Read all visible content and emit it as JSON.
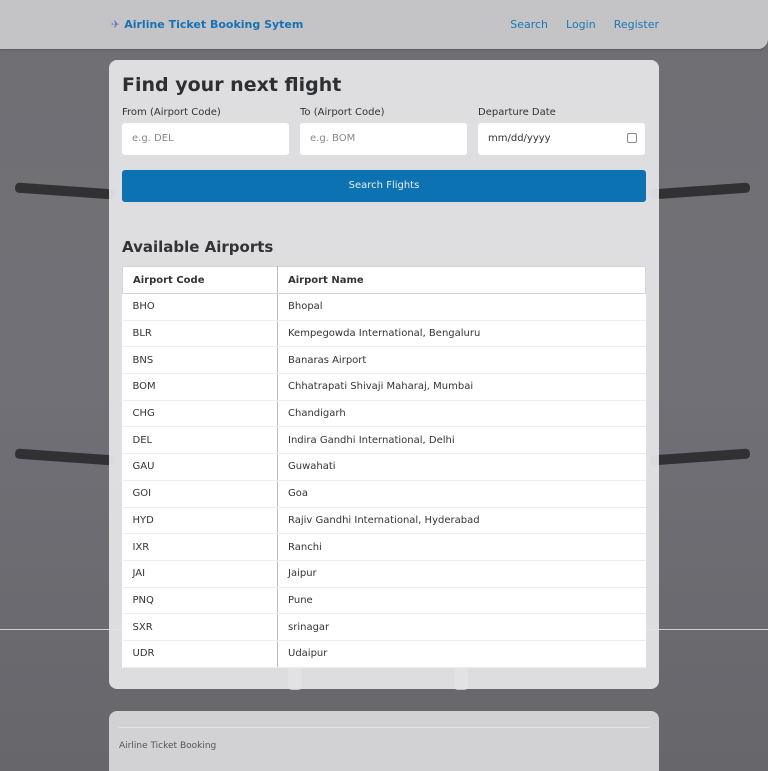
{
  "nav": {
    "brand": "Airline Ticket Booking Sytem",
    "brand_icon": "airplane-icon",
    "links": [
      "Search",
      "Login",
      "Register"
    ]
  },
  "search": {
    "title": "Find your next flight",
    "from_label": "From (Airport Code)",
    "from_placeholder": "e.g. DEL",
    "to_label": "To (Airport Code)",
    "to_placeholder": "e.g. BOM",
    "date_label": "Departure Date",
    "date_placeholder": "mm/dd/yyyy",
    "button": "Search Flights"
  },
  "airports": {
    "title": "Available Airports",
    "headers": [
      "Airport Code",
      "Airport Name"
    ],
    "rows": [
      [
        "BHO",
        "Bhopal"
      ],
      [
        "BLR",
        "Kempegowda International, Bengaluru"
      ],
      [
        "BNS",
        "Banaras Airport"
      ],
      [
        "BOM",
        "Chhatrapati Shivaji Maharaj, Mumbai"
      ],
      [
        "CHG",
        "Chandigarh"
      ],
      [
        "DEL",
        "Indira Gandhi International, Delhi"
      ],
      [
        "GAU",
        "Guwahati"
      ],
      [
        "GOI",
        "Goa"
      ],
      [
        "HYD",
        "Rajiv Gandhi International, Hyderabad"
      ],
      [
        "IXR",
        "Ranchi"
      ],
      [
        "JAI",
        "Jaipur"
      ],
      [
        "PNQ",
        "Pune"
      ],
      [
        "SXR",
        "srinagar"
      ],
      [
        "UDR",
        "Udaipur"
      ]
    ]
  },
  "footer": {
    "text": "Airline Ticket Booking"
  },
  "colors": {
    "accent": "#0d72b2",
    "link": "#1b78b9"
  }
}
